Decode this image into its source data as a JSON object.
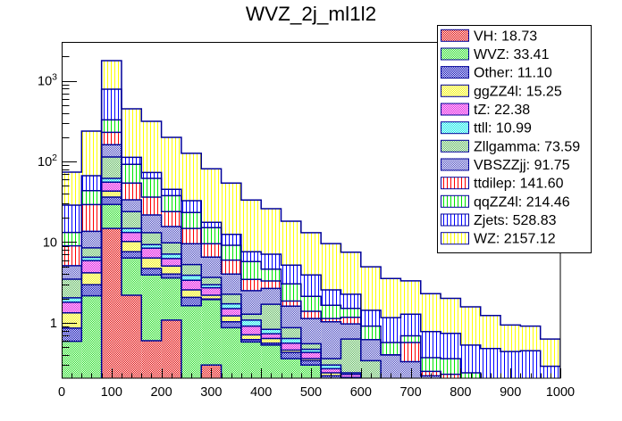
{
  "chart_data": {
    "type": "bar",
    "stacked": true,
    "title": "WVZ_2j_ml1l2",
    "xlabel": "",
    "ylabel": "",
    "xlim": [
      0,
      1000
    ],
    "ylim": [
      0.206,
      3030
    ],
    "yscale": "log",
    "grid": false,
    "legend_position": "top-right",
    "outline_color": "#000099",
    "bin_edges": [
      0,
      40,
      80,
      120,
      160,
      200,
      240,
      280,
      320,
      360,
      400,
      440,
      480,
      520,
      560,
      600,
      640,
      680,
      720,
      760,
      800,
      840,
      880,
      920,
      960,
      1000
    ],
    "categories": [
      "0-40",
      "40-80",
      "80-120",
      "120-160",
      "160-200",
      "200-240",
      "240-280",
      "280-320",
      "320-360",
      "360-400",
      "400-440",
      "440-480",
      "480-520",
      "520-560",
      "560-600",
      "600-640",
      "640-680",
      "680-720",
      "720-760",
      "760-800",
      "800-840",
      "840-880",
      "880-920",
      "920-960",
      "960-1000"
    ],
    "x_ticks": [
      0,
      100,
      200,
      300,
      400,
      500,
      600,
      700,
      800,
      900,
      1000
    ],
    "x_tick_labels": [
      "0",
      "100",
      "200",
      "300",
      "400",
      "500",
      "600",
      "700",
      "800",
      "900",
      "1000"
    ],
    "y_ticks": [
      1,
      10,
      100,
      1000
    ],
    "y_tick_labels": [
      {
        "base": "1",
        "exp": ""
      },
      {
        "base": "10",
        "exp": ""
      },
      {
        "base": "10",
        "exp": "2"
      },
      {
        "base": "10",
        "exp": "3"
      }
    ],
    "series": [
      {
        "name": "VH",
        "legend": "VH: 18.73",
        "integral": 18.73,
        "color": "#e00000",
        "fill": "checker",
        "values": [
          0,
          0,
          14.8,
          2.2,
          0.6,
          1.08,
          0,
          0.3,
          0,
          0,
          0,
          0,
          0,
          0,
          0,
          0,
          0,
          0,
          0,
          0,
          0,
          0,
          0,
          0,
          0
        ]
      },
      {
        "name": "WVZ",
        "legend": "WVZ: 33.41",
        "integral": 33.41,
        "color": "#22dd22",
        "fill": "checker",
        "values": [
          0.59,
          2.16,
          14.5,
          4.16,
          3.32,
          2.52,
          1.63,
          1.64,
          0.87,
          0.58,
          0.53,
          0.36,
          0.3,
          0.15,
          0.12,
          0.08,
          0.05,
          0.05,
          0.03,
          0.03,
          0.03,
          0.03,
          0.03,
          0.03,
          0.03
        ]
      },
      {
        "name": "Other",
        "legend": "Other: 11.10",
        "integral": 11.1,
        "color": "#0000b4",
        "fill": "checker",
        "values": [
          0.27,
          0.8,
          6.8,
          1.24,
          0.8,
          0.42,
          0.44,
          0.03,
          0.16,
          0.04,
          0.03,
          0.07,
          0.04,
          0.07,
          0.06,
          0.02,
          0.01,
          0.01,
          0.01,
          0.01,
          0.01,
          0.01,
          0.01,
          0.01,
          0.01
        ]
      },
      {
        "name": "ggZZ4l",
        "legend": "ggZZ4l: 15.25",
        "integral": 15.25,
        "color": "#f2f200",
        "fill": "checker",
        "values": [
          0.47,
          1.2,
          6.8,
          2.6,
          1.64,
          1.04,
          0.49,
          0.23,
          0.19,
          0.09,
          0.08,
          0.03,
          0.02,
          0.02,
          0.03,
          0.02,
          0.02,
          0.02,
          0.01,
          0.01,
          0.01,
          0.01,
          0.01,
          0.01,
          0.01
        ]
      },
      {
        "name": "tZ",
        "legend": "tZ: 22.38",
        "integral": 22.38,
        "color": "#e000e0",
        "fill": "checker",
        "values": [
          0.47,
          1.74,
          12.4,
          3.0,
          2.05,
          1.19,
          0.81,
          0.52,
          0.28,
          0.2,
          0.09,
          0.1,
          0.07,
          0.03,
          0.02,
          0.01,
          0.01,
          0.01,
          0.01,
          0.01,
          0.01,
          0.01,
          0.01,
          0.01,
          0.01
        ]
      },
      {
        "name": "ttll",
        "legend": "ttll: 10.99",
        "integral": 10.99,
        "color": "#00e8e8",
        "fill": "checker",
        "values": [
          0.24,
          0.6,
          6.4,
          1.6,
          0.9,
          0.85,
          0.51,
          0.24,
          0.22,
          0.17,
          0.1,
          0.08,
          0.04,
          0.03,
          0.01,
          0.02,
          0.01,
          0.01,
          0.01,
          0.01,
          0.01,
          0.01,
          0.01,
          0.01,
          0.01
        ]
      },
      {
        "name": "Zllgamma",
        "legend": "Zllgamma: 73.59",
        "integral": 73.59,
        "color": "#5cb85c",
        "fill": "checker",
        "values": [
          1.44,
          2.0,
          51.9,
          9.1,
          3.79,
          2.7,
          1.39,
          0.7,
          0.54,
          0.2,
          0.87,
          0.23,
          0.08,
          0.06,
          0.39,
          0.19,
          0.05,
          0.05,
          0.03,
          0.03,
          0.03,
          0.02,
          0.02,
          0.02,
          0.02
        ]
      },
      {
        "name": "VBSZZjj",
        "legend": "VBSZZjj: 91.75",
        "integral": 91.75,
        "color": "#4848c0",
        "fill": "checker",
        "values": [
          1.62,
          5.1,
          47.4,
          9.6,
          8.6,
          5.8,
          4.28,
          2.86,
          1.76,
          1.22,
          0.97,
          0.74,
          0.58,
          0.67,
          0.34,
          0.28,
          0.25,
          0.18,
          0.12,
          0.05,
          0.03,
          0.03,
          0.03,
          0.03,
          0.03
        ]
      },
      {
        "name": "ttdilep",
        "legend": "ttdilep: 141.60",
        "integral": 141.6,
        "color": "#ff0000",
        "fill": "vlines",
        "values": [
          3.9,
          15.6,
          68.7,
          20.4,
          14.4,
          8.3,
          5.25,
          3.03,
          1.96,
          0.95,
          0.63,
          0.25,
          0.26,
          0.1,
          0.2,
          0,
          0,
          0.24,
          0.03,
          0.08,
          0.02,
          0.01,
          0.01,
          0.01,
          0.01
        ]
      },
      {
        "name": "qqZZ4l",
        "legend": "qqZZ4l: 214.46",
        "integral": 214.46,
        "color": "#00e600",
        "fill": "vlines",
        "values": [
          4.2,
          14.3,
          98.3,
          38.1,
          25.6,
          13.8,
          8.5,
          5.55,
          3.17,
          2.29,
          1.33,
          1.18,
          0.74,
          0.52,
          0.34,
          0.29,
          0.17,
          0.12,
          0.12,
          0.13,
          0.09,
          0.02,
          0.02,
          0.02,
          0.02
        ]
      },
      {
        "name": "Zjets",
        "legend": "Zjets: 528.83",
        "integral": 528.83,
        "color": "#0000ff",
        "fill": "vlines",
        "values": [
          15.5,
          23.0,
          457,
          20.7,
          11.4,
          7.4,
          9.3,
          2.5,
          3.35,
          1.86,
          2.46,
          2.15,
          1.79,
          0.91,
          0.75,
          0.52,
          0.59,
          0.59,
          0.41,
          0.38,
          0.29,
          0.33,
          0.29,
          0.3,
          0.14
        ]
      },
      {
        "name": "WZ",
        "legend": "WZ: 2157.12",
        "integral": 2157.12,
        "color": "#ffff00",
        "fill": "vlines",
        "values": [
          45.0,
          171.5,
          989,
          336,
          241,
          154,
          93.4,
          63.4,
          41.5,
          25.7,
          18.9,
          13.0,
          9.18,
          7.04,
          5.24,
          3.51,
          2.38,
          2.03,
          1.52,
          1.27,
          1.05,
          0.75,
          0.5,
          0.46,
          0.34
        ]
      }
    ]
  }
}
